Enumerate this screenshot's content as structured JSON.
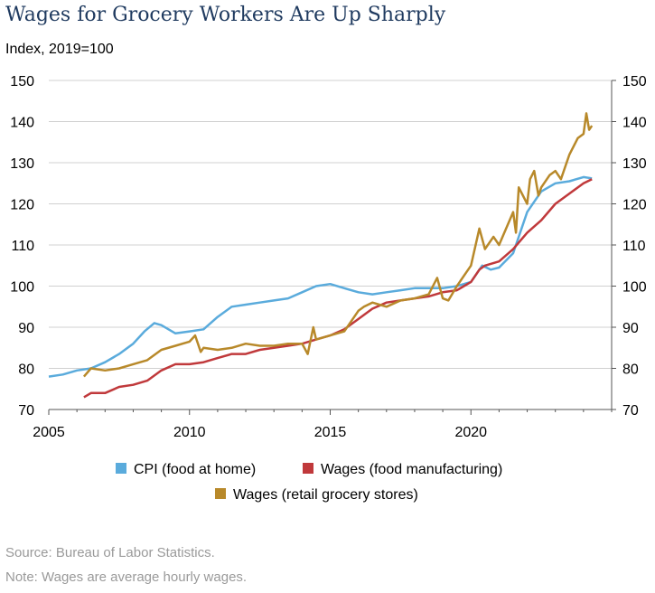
{
  "title": "Wages for Grocery Workers Are Up Sharply",
  "subtitle": "Index, 2019=100",
  "source": "Source: Bureau of Labor Statistics.",
  "note": "Note: Wages are average hourly wages.",
  "chart_data": {
    "type": "line",
    "title": "Wages for Grocery Workers Are Up Sharply",
    "ylabel": "Index, 2019=100",
    "xlim": [
      2005,
      2025
    ],
    "ylim": [
      70,
      150
    ],
    "x_ticks": [
      "2005",
      "2010",
      "2015",
      "2020"
    ],
    "x_tick_values": [
      2005,
      2010,
      2015,
      2020
    ],
    "y_ticks": [
      "70",
      "80",
      "90",
      "100",
      "110",
      "120",
      "130",
      "140",
      "150"
    ],
    "y_tick_values": [
      70,
      80,
      90,
      100,
      110,
      120,
      130,
      140,
      150
    ],
    "legend_position": "bottom",
    "series": [
      {
        "name": "CPI (food at home)",
        "color": "#5aabdc",
        "x": [
          2005.0,
          2005.5,
          2006.0,
          2006.5,
          2007.0,
          2007.5,
          2008.0,
          2008.4,
          2008.75,
          2009.0,
          2009.5,
          2010.0,
          2010.5,
          2011.0,
          2011.5,
          2012.0,
          2012.5,
          2013.0,
          2013.5,
          2014.0,
          2014.5,
          2015.0,
          2015.5,
          2016.0,
          2016.5,
          2017.0,
          2017.5,
          2018.0,
          2018.5,
          2019.0,
          2019.5,
          2020.0,
          2020.2,
          2020.4,
          2020.7,
          2021.0,
          2021.5,
          2022.0,
          2022.5,
          2023.0,
          2023.5,
          2024.0,
          2024.3
        ],
        "values": [
          78,
          78.5,
          79.5,
          80,
          81.5,
          83.5,
          86,
          89,
          91,
          90.5,
          88.5,
          89,
          89.5,
          92.5,
          95,
          95.5,
          96,
          96.5,
          97,
          98.5,
          100,
          100.5,
          99.5,
          98.5,
          98,
          98.5,
          99,
          99.5,
          99.5,
          99.5,
          100,
          101,
          103,
          105,
          104,
          104.5,
          108,
          118,
          123,
          125,
          125.5,
          126.5,
          126.2
        ]
      },
      {
        "name": "Wages (food manufacturing)",
        "color": "#c0393b",
        "x": [
          2006.25,
          2006.5,
          2007.0,
          2007.5,
          2008.0,
          2008.5,
          2009.0,
          2009.5,
          2010.0,
          2010.5,
          2011.0,
          2011.5,
          2012.0,
          2012.5,
          2013.0,
          2013.5,
          2014.0,
          2014.5,
          2015.0,
          2015.5,
          2016.0,
          2016.5,
          2017.0,
          2017.5,
          2018.0,
          2018.5,
          2019.0,
          2019.5,
          2020.0,
          2020.3,
          2020.5,
          2021.0,
          2021.5,
          2022.0,
          2022.5,
          2023.0,
          2023.5,
          2024.0,
          2024.3
        ],
        "values": [
          73,
          74,
          74,
          75.5,
          76,
          77,
          79.5,
          81,
          81,
          81.5,
          82.5,
          83.5,
          83.5,
          84.5,
          85,
          85.5,
          86,
          87,
          88,
          89.5,
          92,
          94.5,
          96,
          96.5,
          97,
          97.5,
          98.5,
          99,
          101,
          104,
          105,
          106,
          109,
          113,
          116,
          120,
          122.5,
          125,
          126
        ]
      },
      {
        "name": "Wages (retail grocery stores)",
        "color": "#b8892a",
        "x": [
          2006.25,
          2006.5,
          2007.0,
          2007.5,
          2008.0,
          2008.5,
          2009.0,
          2009.5,
          2010.0,
          2010.2,
          2010.4,
          2010.5,
          2011.0,
          2011.5,
          2012.0,
          2012.5,
          2013.0,
          2013.5,
          2014.0,
          2014.2,
          2014.4,
          2014.5,
          2015.0,
          2015.5,
          2016.0,
          2016.2,
          2016.5,
          2017.0,
          2017.5,
          2018.0,
          2018.5,
          2018.8,
          2019.0,
          2019.2,
          2019.5,
          2019.8,
          2020.0,
          2020.3,
          2020.5,
          2020.8,
          2021.0,
          2021.5,
          2021.6,
          2021.7,
          2022.0,
          2022.1,
          2022.25,
          2022.4,
          2022.5,
          2022.8,
          2023.0,
          2023.2,
          2023.5,
          2023.8,
          2024.0,
          2024.1,
          2024.2,
          2024.3
        ],
        "values": [
          78,
          80,
          79.5,
          80,
          81,
          82,
          84.5,
          85.5,
          86.5,
          88,
          84,
          85,
          84.5,
          85,
          86,
          85.5,
          85.5,
          86,
          86,
          83.5,
          90,
          87,
          88,
          89,
          94,
          95,
          96,
          95,
          96.5,
          97,
          98,
          102,
          97,
          96.5,
          100,
          103,
          105,
          114,
          109,
          112,
          110,
          118,
          113,
          124,
          120,
          126,
          128,
          122,
          124,
          127,
          128,
          126,
          132,
          136,
          137,
          142,
          138,
          139
        ]
      }
    ]
  },
  "legend": {
    "items": [
      {
        "label": "CPI (food at home)",
        "color": "#5aabdc"
      },
      {
        "label": "Wages (food manufacturing)",
        "color": "#c0393b"
      },
      {
        "label": "Wages (retail grocery stores)",
        "color": "#b8892a"
      }
    ]
  }
}
